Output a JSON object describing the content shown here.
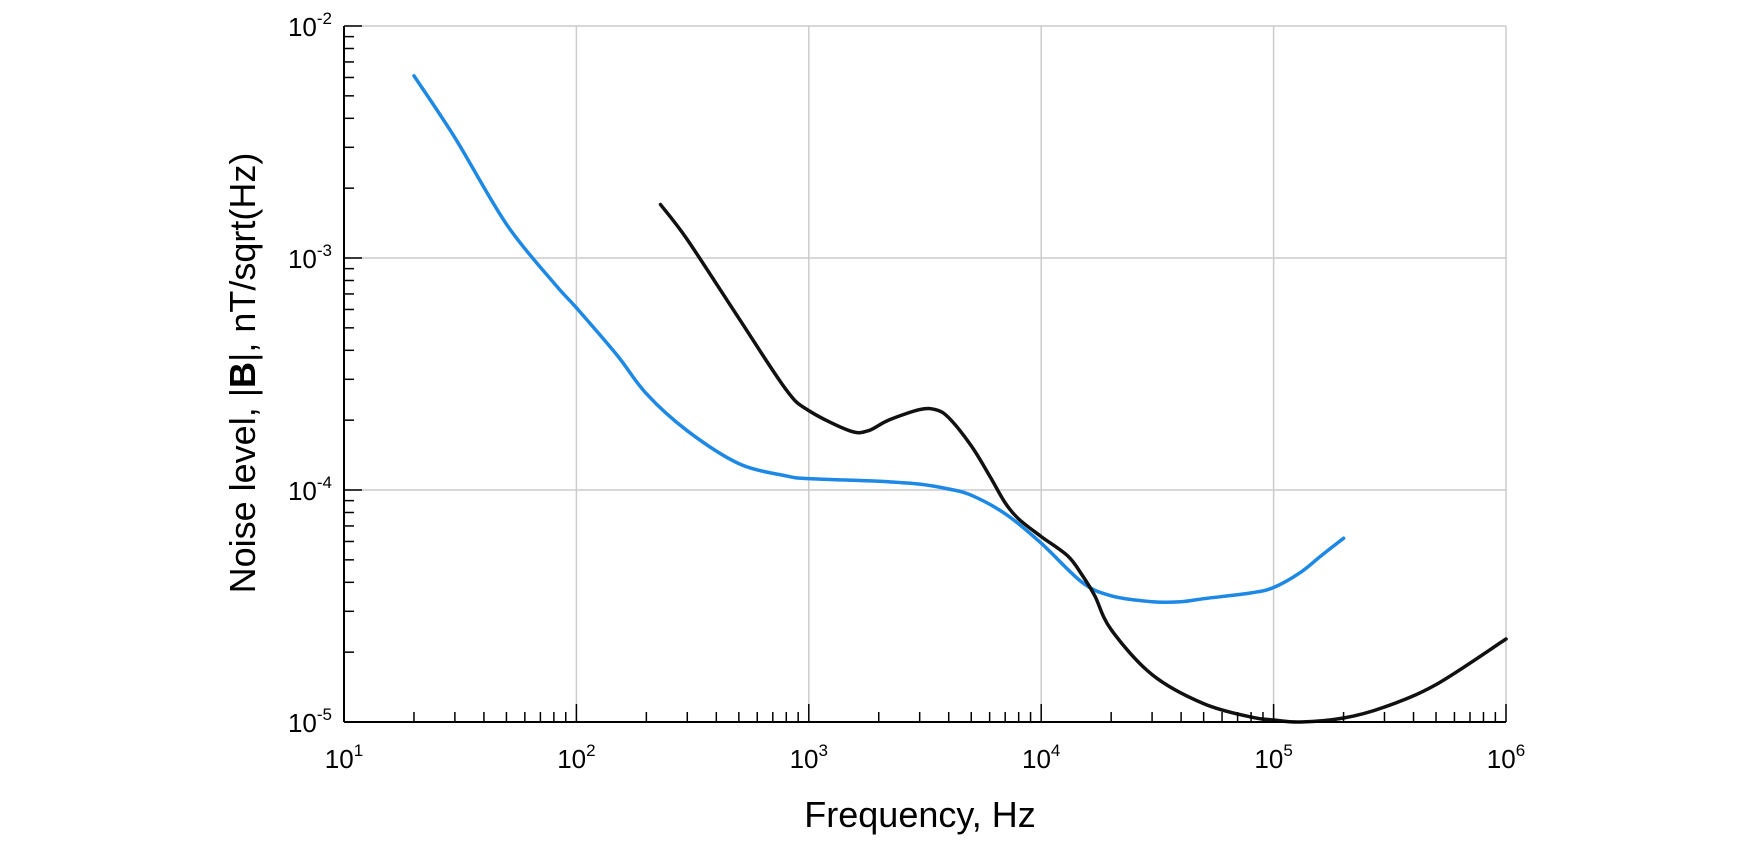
{
  "chart_data": {
    "type": "line",
    "xlabel": "Frequency, Hz",
    "ylabel": {
      "prefix": "Noise level, |",
      "bold": "B",
      "suffix": "|, nT/sqrt(Hz)"
    },
    "x_scale": "log",
    "y_scale": "log",
    "xlim": [
      10,
      1000000
    ],
    "ylim": [
      1e-05,
      0.01
    ],
    "grid": true,
    "x_ticks": [
      {
        "value": 10,
        "base": "10",
        "exp": "1"
      },
      {
        "value": 100,
        "base": "10",
        "exp": "2"
      },
      {
        "value": 1000,
        "base": "10",
        "exp": "3"
      },
      {
        "value": 10000,
        "base": "10",
        "exp": "4"
      },
      {
        "value": 100000,
        "base": "10",
        "exp": "5"
      },
      {
        "value": 1000000,
        "base": "10",
        "exp": "6"
      }
    ],
    "y_ticks": [
      {
        "value": 1e-05,
        "base": "10",
        "exp": "-5"
      },
      {
        "value": 0.0001,
        "base": "10",
        "exp": "-4"
      },
      {
        "value": 0.001,
        "base": "10",
        "exp": "-3"
      },
      {
        "value": 0.01,
        "base": "10",
        "exp": "-2"
      }
    ],
    "series": [
      {
        "color": "#1e88e5",
        "x": [
          20,
          30,
          50,
          80,
          100,
          150,
          200,
          300,
          500,
          800,
          1000,
          2000,
          3000,
          4000,
          5000,
          7000,
          10000,
          15000,
          20000,
          30000,
          40000,
          50000,
          80000,
          100000,
          130000,
          160000,
          200000
        ],
        "y": [
          0.0061,
          0.0033,
          0.0014,
          0.00078,
          0.00061,
          0.00038,
          0.00026,
          0.00018,
          0.00013,
          0.000115,
          0.000112,
          0.000109,
          0.000106,
          0.000101,
          9.5e-05,
          7.9e-05,
          5.9e-05,
          4e-05,
          3.5e-05,
          3.3e-05,
          3.3e-05,
          3.4e-05,
          3.6e-05,
          3.8e-05,
          4.4e-05,
          5.2e-05,
          6.2e-05
        ]
      },
      {
        "color": "#111111",
        "x": [
          230,
          300,
          500,
          800,
          1000,
          1500,
          1800,
          2200,
          3000,
          3500,
          4000,
          5000,
          6000,
          7000,
          8000,
          10000,
          13000,
          15000,
          17000,
          20000,
          30000,
          50000,
          80000,
          100000,
          130000,
          200000,
          300000,
          500000,
          1000000
        ],
        "y": [
          0.0017,
          0.0012,
          0.00055,
          0.00027,
          0.00022,
          0.00018,
          0.00018,
          0.0002,
          0.000222,
          0.000222,
          0.000205,
          0.000155,
          0.000115,
          8.8e-05,
          7.5e-05,
          6.3e-05,
          5.2e-05,
          4.3e-05,
          3.5e-05,
          2.5e-05,
          1.6e-05,
          1.2e-05,
          1.05e-05,
          1.02e-05,
          1e-05,
          1.04e-05,
          1.16e-05,
          1.45e-05,
          2.28e-05
        ]
      }
    ]
  }
}
